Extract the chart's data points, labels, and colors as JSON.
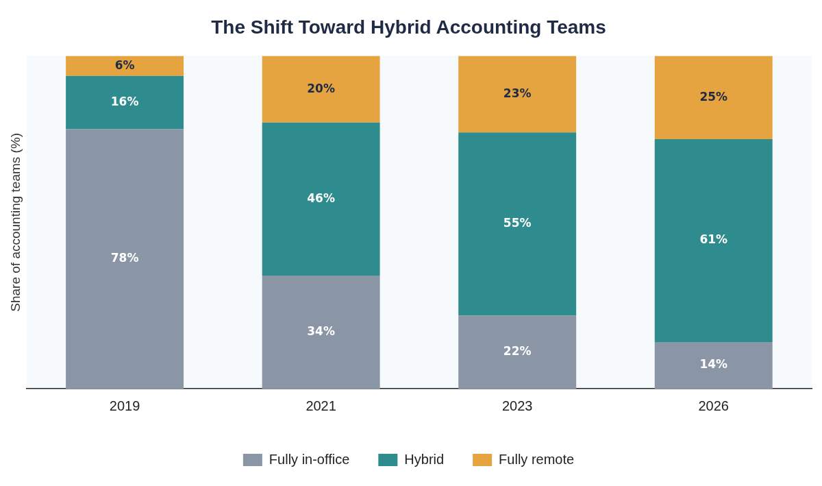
{
  "chart_data": {
    "type": "bar",
    "title": "The Shift Toward Hybrid Accounting Teams",
    "ylabel": "Share of accounting teams (%)",
    "categories": [
      "2019",
      "2021",
      "2023",
      "2026"
    ],
    "stacked": true,
    "series": [
      {
        "name": "Fully in-office",
        "color": "#8a95a5",
        "values": [
          78,
          34,
          22,
          14
        ],
        "value_labels": [
          "78%",
          "34%",
          "22%",
          "14%"
        ]
      },
      {
        "name": "Hybrid",
        "color": "#2e8b8e",
        "values": [
          16,
          46,
          55,
          61
        ],
        "value_labels": [
          "16%",
          "46%",
          "55%",
          "61%"
        ]
      },
      {
        "name": "Fully remote",
        "color": "#e5a43f",
        "values": [
          6,
          20,
          23,
          25
        ],
        "value_labels": [
          "6%",
          "20%",
          "23%",
          "25%"
        ]
      }
    ],
    "tick_labels": "x",
    "grid": false,
    "legend": "bottom"
  }
}
